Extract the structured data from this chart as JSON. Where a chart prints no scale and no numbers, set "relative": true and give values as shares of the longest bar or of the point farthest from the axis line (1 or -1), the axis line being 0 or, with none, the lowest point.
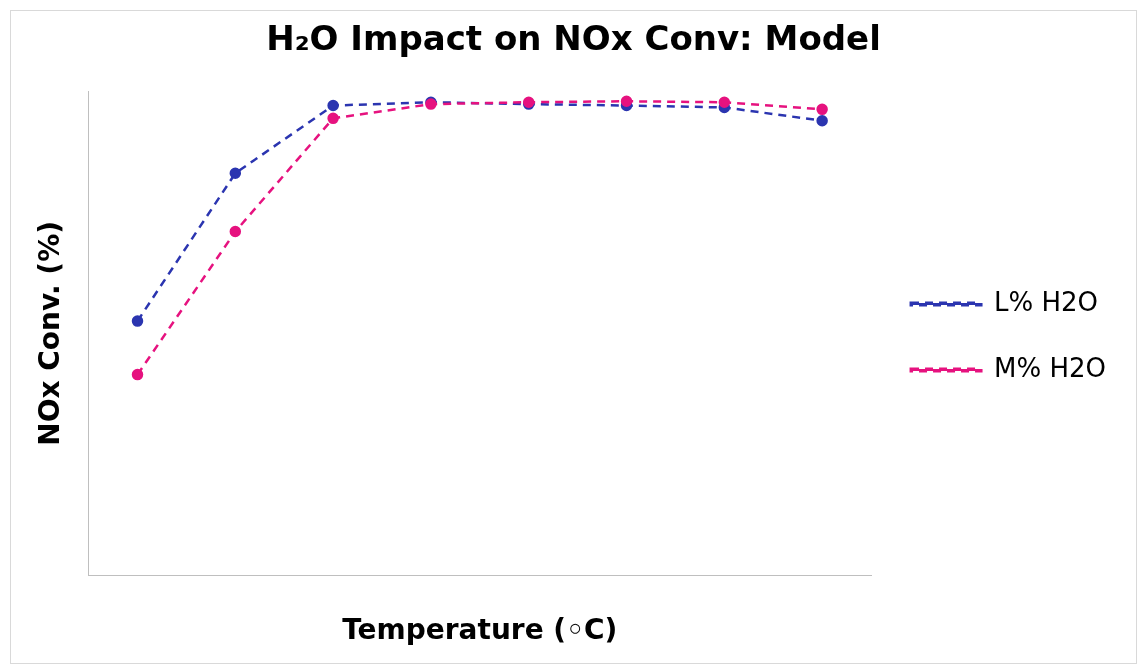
{
  "chart_data": {
    "type": "line",
    "title": "H₂O Impact on NOx Conv: Model",
    "xlabel": "Temperature (◦C)",
    "ylabel": "NOx Conv. (%)",
    "relative": true,
    "categories": [
      null,
      null,
      null,
      null,
      null,
      null,
      null,
      null
    ],
    "series": [
      {
        "name": "L% H2O",
        "color": "#2b35b0",
        "values": [
          0.536,
          0.848,
          0.991,
          0.998,
          0.994,
          0.991,
          0.987,
          0.959
        ]
      },
      {
        "name": "M% H2O",
        "color": "#e6127f",
        "values": [
          0.423,
          0.725,
          0.964,
          0.994,
          0.998,
          1.0,
          0.998,
          0.983
        ]
      }
    ],
    "legend": "right",
    "marker": "circle",
    "line_style": "dashed",
    "grid": false
  }
}
